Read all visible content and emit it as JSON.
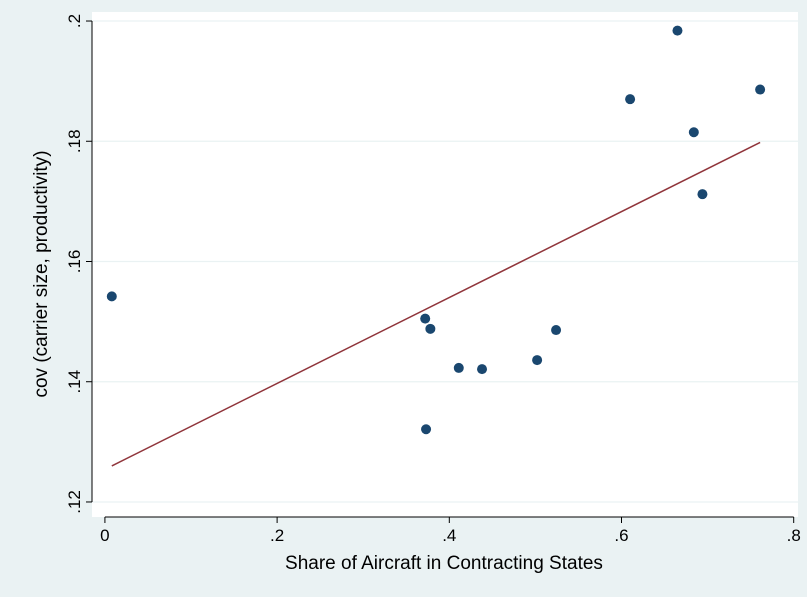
{
  "chart_data": {
    "type": "scatter",
    "title": "",
    "xlabel": "Share of Aircraft in Contracting States",
    "ylabel": "cov (carrier size, productivity)",
    "xlim": [
      -0.015,
      0.805
    ],
    "ylim": [
      0.1175,
      0.2015
    ],
    "x_ticks": [
      0,
      0.2,
      0.4,
      0.6,
      0.8
    ],
    "x_tick_labels": [
      "0",
      ".2",
      ".4",
      ".6",
      ".8"
    ],
    "y_ticks": [
      0.12,
      0.14,
      0.16,
      0.18,
      0.2
    ],
    "y_tick_labels": [
      ".12",
      ".14",
      ".16",
      ".18",
      ".2"
    ],
    "grid": "horizontal",
    "legend": "none",
    "points": [
      {
        "x": 0.008,
        "y": 0.1542
      },
      {
        "x": 0.372,
        "y": 0.1505
      },
      {
        "x": 0.378,
        "y": 0.1488
      },
      {
        "x": 0.373,
        "y": 0.1321
      },
      {
        "x": 0.411,
        "y": 0.1423
      },
      {
        "x": 0.438,
        "y": 0.1421
      },
      {
        "x": 0.502,
        "y": 0.1436
      },
      {
        "x": 0.524,
        "y": 0.1486
      },
      {
        "x": 0.61,
        "y": 0.187
      },
      {
        "x": 0.665,
        "y": 0.1984
      },
      {
        "x": 0.684,
        "y": 0.1815
      },
      {
        "x": 0.694,
        "y": 0.1712
      },
      {
        "x": 0.761,
        "y": 0.1886
      }
    ],
    "fit_line": {
      "x": [
        0.008,
        0.761
      ],
      "y": [
        0.126,
        0.1798
      ]
    },
    "colors": {
      "background": "#eaf2f3",
      "plot_area": "#ffffff",
      "grid": "#eaf2f3",
      "marker": "#1a476f",
      "fit_line": "#90353b",
      "axis": "#000000"
    }
  }
}
